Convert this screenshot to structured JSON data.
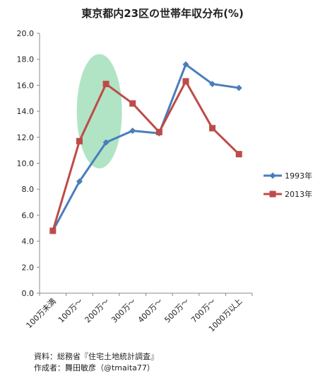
{
  "chart_data": {
    "type": "line",
    "title": "東京都内23区の世帯年収分布(%)",
    "categories": [
      "100万未満",
      "100万～",
      "200万～",
      "300万～",
      "400万～",
      "500万～",
      "700万～",
      "1000万以上"
    ],
    "series": [
      {
        "name": "1993年",
        "color": "#4a7ebb",
        "marker": "diamond",
        "values": [
          4.8,
          8.6,
          11.6,
          12.5,
          12.3,
          17.6,
          16.1,
          15.8
        ]
      },
      {
        "name": "2013年",
        "color": "#be4b48",
        "marker": "square",
        "values": [
          4.8,
          11.7,
          16.1,
          14.6,
          12.4,
          16.3,
          12.7,
          10.7
        ]
      }
    ],
    "ylim": [
      0,
      20
    ],
    "yticks": [
      "0.0",
      "2.0",
      "4.0",
      "6.0",
      "8.0",
      "10.0",
      "12.0",
      "14.0",
      "16.0",
      "18.0",
      "20.0"
    ],
    "grid": false,
    "legend_position": "right",
    "annotation": {
      "type": "highlight-ellipse",
      "color": "#8fd9ad",
      "center_x_category": 1.75,
      "center_y": 14.0,
      "rx_categories": 0.85,
      "ry_value": 4.4
    }
  },
  "source": "資料：総務省『住宅土地統計調査』",
  "author": "作成者：舞田敏彦（@tmaita77）"
}
